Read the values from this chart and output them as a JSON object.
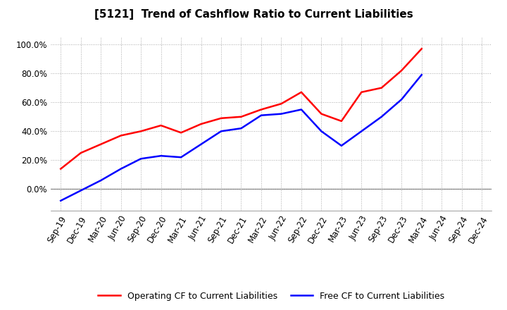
{
  "title": "[5121]  Trend of Cashflow Ratio to Current Liabilities",
  "x_labels": [
    "Sep-19",
    "Dec-19",
    "Mar-20",
    "Jun-20",
    "Sep-20",
    "Dec-20",
    "Mar-21",
    "Jun-21",
    "Sep-21",
    "Dec-21",
    "Mar-22",
    "Jun-22",
    "Sep-22",
    "Dec-22",
    "Mar-23",
    "Jun-23",
    "Sep-23",
    "Dec-23",
    "Mar-24",
    "Jun-24",
    "Sep-24",
    "Dec-24"
  ],
  "operating_cf": [
    0.14,
    0.25,
    0.31,
    0.37,
    0.4,
    0.44,
    0.39,
    0.45,
    0.49,
    0.5,
    0.55,
    0.59,
    0.67,
    0.52,
    0.47,
    0.67,
    0.7,
    0.82,
    0.97,
    null,
    null,
    null
  ],
  "free_cf": [
    -0.08,
    -0.01,
    0.06,
    0.14,
    0.21,
    0.23,
    0.22,
    0.31,
    0.4,
    0.42,
    0.51,
    0.52,
    0.55,
    0.4,
    0.3,
    0.4,
    0.5,
    0.62,
    0.79,
    null,
    null,
    null
  ],
  "ylim": [
    -0.15,
    1.05
  ],
  "yticks": [
    0.0,
    0.2,
    0.4,
    0.6,
    0.8,
    1.0
  ],
  "operating_color": "#ff0000",
  "free_color": "#0000ff",
  "background_color": "#ffffff",
  "grid_color": "#aaaaaa",
  "legend_operating": "Operating CF to Current Liabilities",
  "legend_free": "Free CF to Current Liabilities",
  "title_fontsize": 11,
  "tick_fontsize": 8.5
}
